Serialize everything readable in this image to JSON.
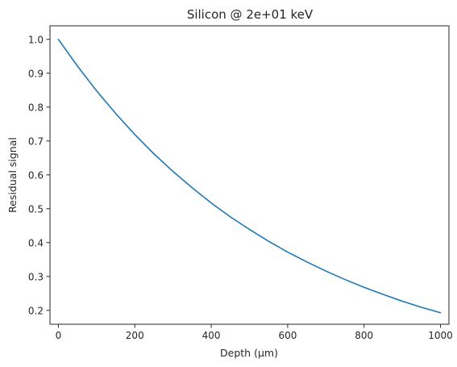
{
  "chart_data": {
    "type": "line",
    "title": "Silicon @ 2e+01 keV",
    "xlabel": "Depth (µm)",
    "ylabel": "Residual signal",
    "xlim": [
      -22,
      1022
    ],
    "ylim": [
      0.159,
      1.04
    ],
    "xticks": [
      0,
      200,
      400,
      600,
      800,
      1000
    ],
    "yticks": [
      0.2,
      0.3,
      0.4,
      0.5,
      0.6,
      0.7,
      0.8,
      0.9,
      1.0
    ],
    "xtick_labels": [
      "0",
      "200",
      "400",
      "600",
      "800",
      "1000"
    ],
    "ytick_labels": [
      "0.2",
      "0.3",
      "0.4",
      "0.5",
      "0.6",
      "0.7",
      "0.8",
      "0.9",
      "1.0"
    ],
    "grid": false,
    "series": [
      {
        "color": "#1f77b4",
        "x": [
          0,
          50,
          100,
          150,
          200,
          250,
          300,
          350,
          400,
          450,
          500,
          550,
          600,
          650,
          700,
          750,
          800,
          850,
          900,
          950,
          1000
        ],
        "y": [
          1.0,
          0.921,
          0.848,
          0.781,
          0.719,
          0.662,
          0.61,
          0.562,
          0.517,
          0.476,
          0.439,
          0.404,
          0.372,
          0.343,
          0.316,
          0.291,
          0.268,
          0.247,
          0.227,
          0.209,
          0.193
        ]
      }
    ]
  }
}
